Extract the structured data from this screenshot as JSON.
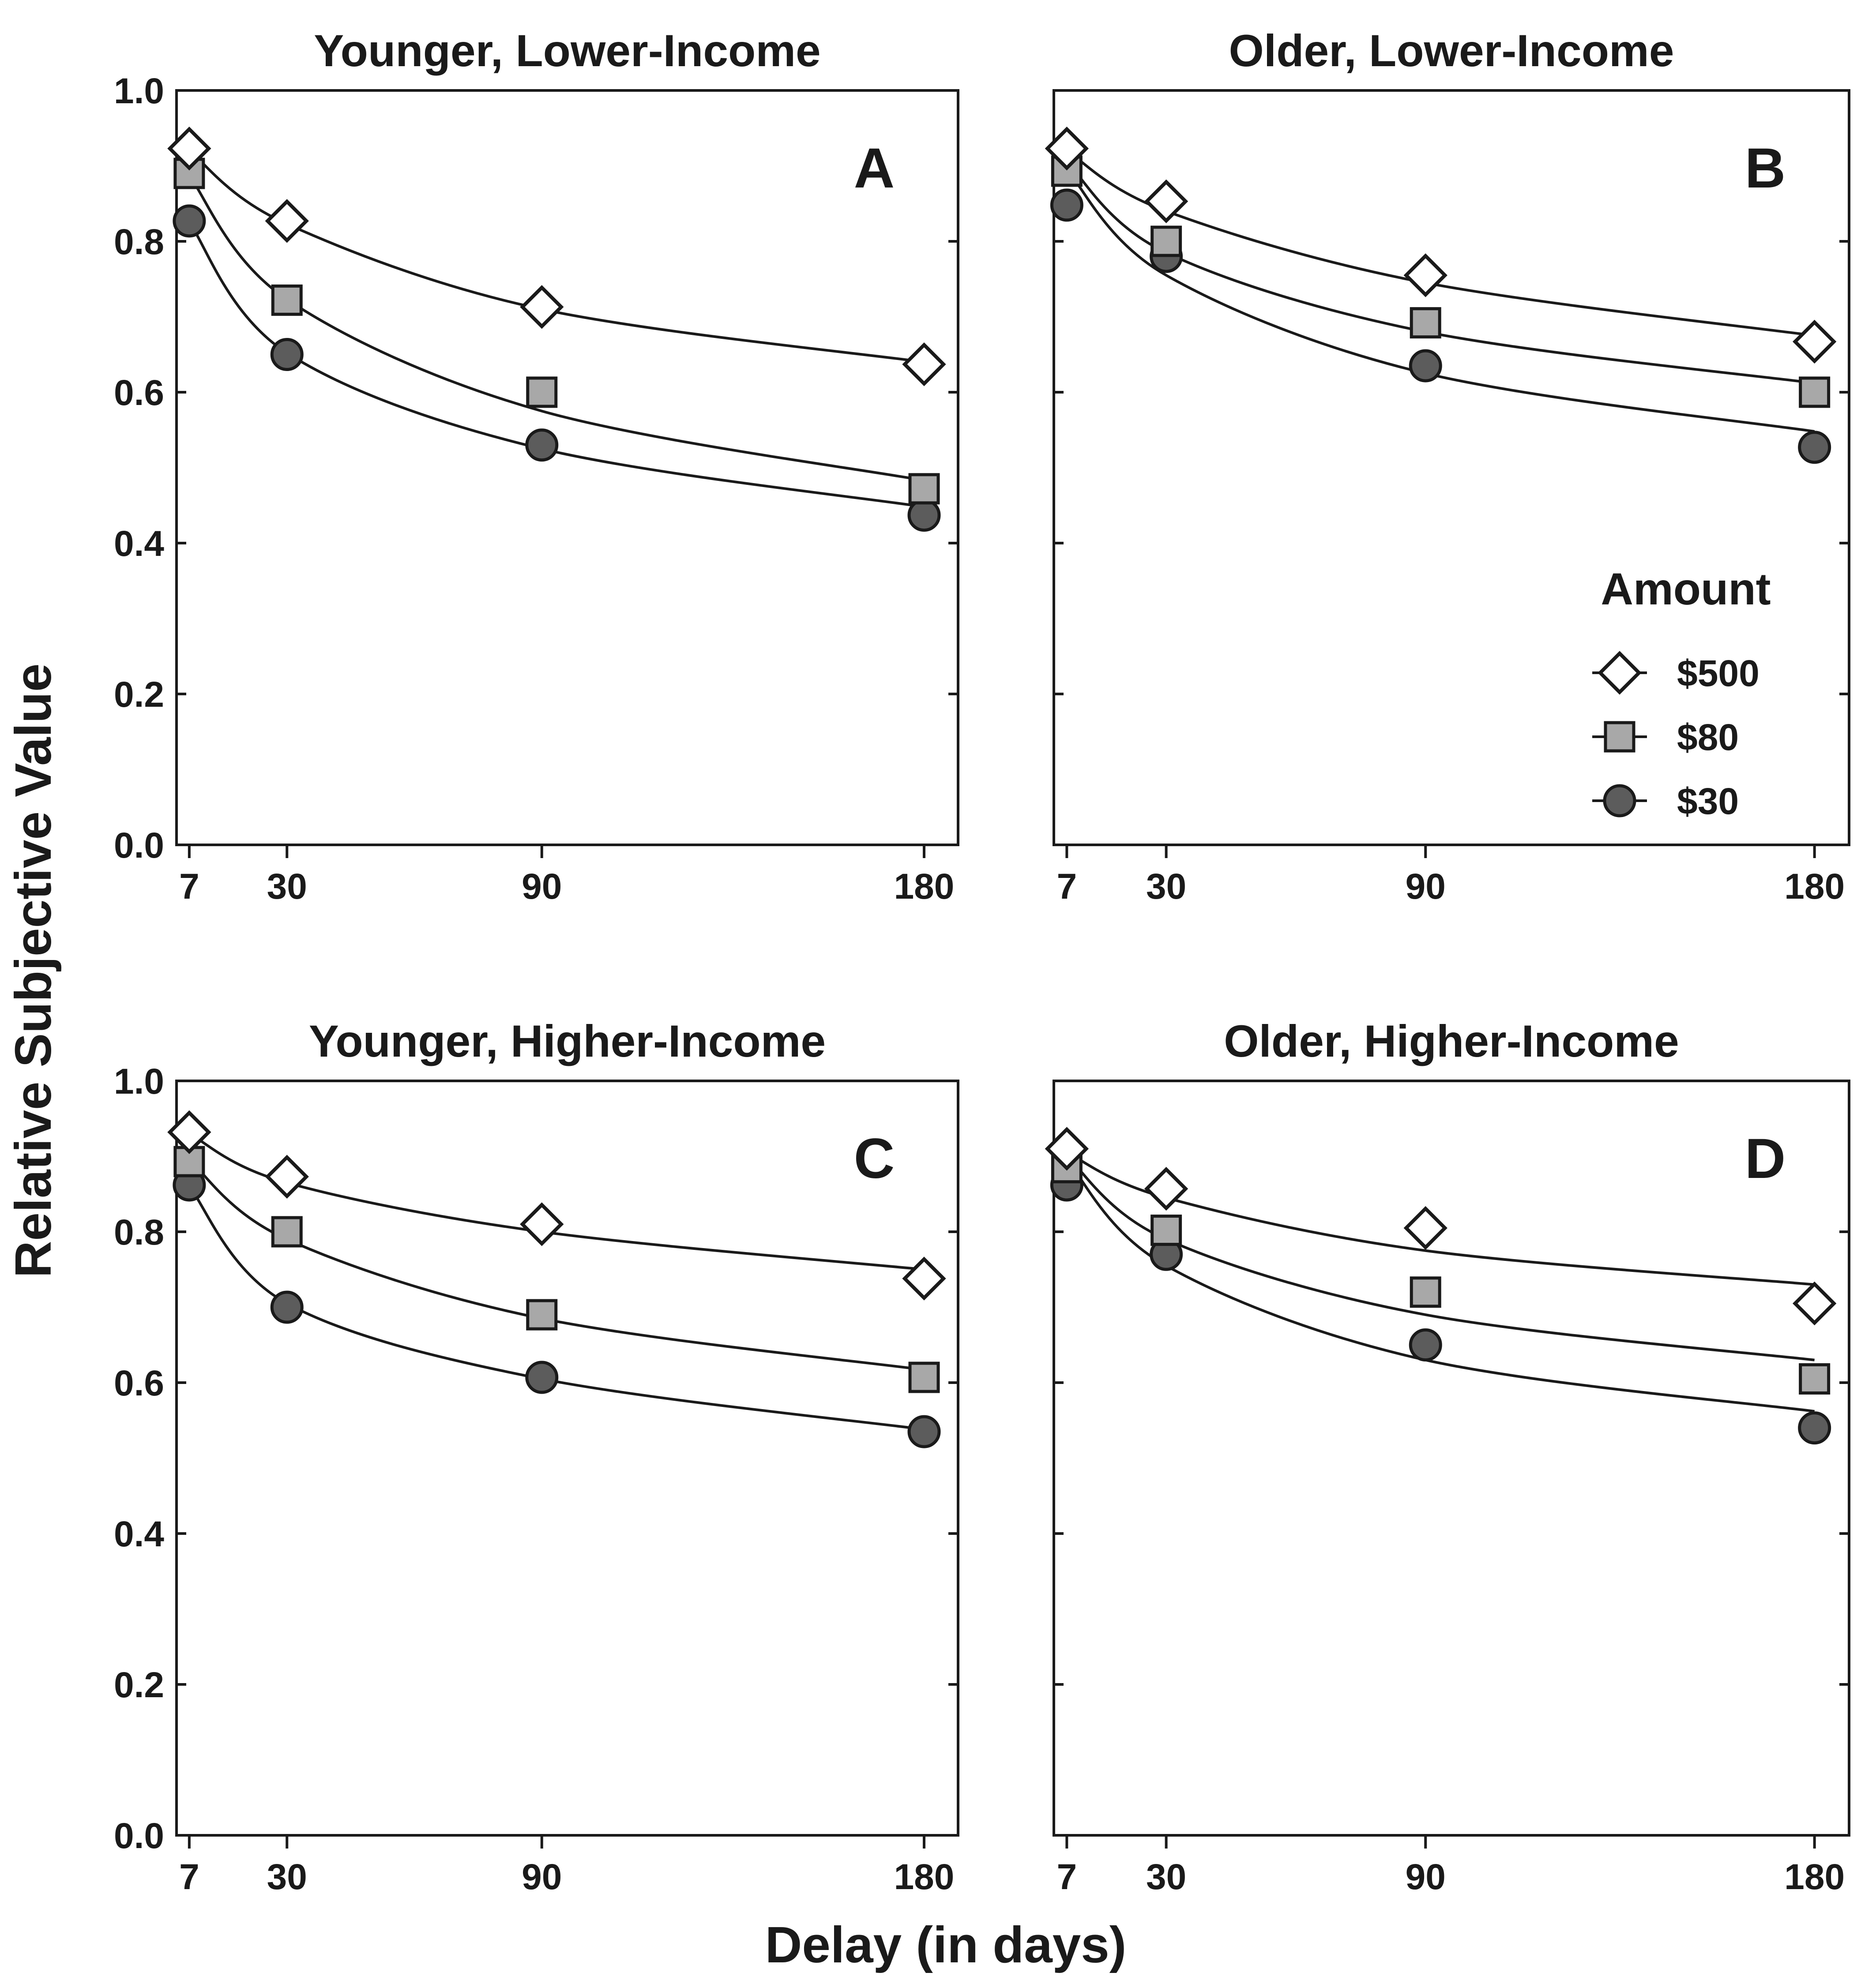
{
  "figure": {
    "xlabel": "Delay (in days)",
    "ylabel": "Relative Subjective Value",
    "legend": {
      "title": "Amount",
      "placement": "bottom-right of panel B",
      "entries": [
        {
          "label": "$500",
          "marker": "diamond",
          "fill": "#ffffff"
        },
        {
          "label": "$80",
          "marker": "square",
          "fill": "#a8a8a8"
        },
        {
          "label": "$30",
          "marker": "circle",
          "fill": "#5c5c5c"
        }
      ]
    },
    "colors": {
      "stroke": "#1a1a1a",
      "diamond": "#ffffff",
      "square": "#a8a8a8",
      "circle": "#5c5c5c"
    }
  },
  "chart_data": [
    {
      "type": "scatter",
      "title": "Younger, Lower-Income",
      "panel_label": "A",
      "x": [
        7,
        30,
        90,
        180
      ],
      "x_ticks": [
        7,
        30,
        90,
        180
      ],
      "y_ticks": [
        "0.0",
        "0.2",
        "0.4",
        "0.6",
        "0.8",
        "1.0"
      ],
      "ylim": [
        0,
        1
      ],
      "xlim": [
        4,
        188
      ],
      "series": [
        {
          "marker": "diamond",
          "values": [
            0.923,
            0.827,
            0.713,
            0.637
          ],
          "fit": [
            0.92,
            0.823,
            0.71,
            0.64
          ]
        },
        {
          "marker": "square",
          "values": [
            0.89,
            0.722,
            0.6,
            0.472
          ],
          "fit": [
            0.887,
            0.723,
            0.575,
            0.483
          ]
        },
        {
          "marker": "circle",
          "values": [
            0.827,
            0.65,
            0.53,
            0.437
          ],
          "fit": [
            0.825,
            0.652,
            0.525,
            0.448
          ]
        }
      ]
    },
    {
      "type": "scatter",
      "title": "Older, Lower-Income",
      "panel_label": "B",
      "x": [
        7,
        30,
        90,
        180
      ],
      "x_ticks": [
        7,
        30,
        90,
        180
      ],
      "y_ticks": [
        "0.0",
        "0.2",
        "0.4",
        "0.6",
        "0.8",
        "1.0"
      ],
      "ylim": [
        0,
        1
      ],
      "xlim": [
        4,
        188
      ],
      "series": [
        {
          "marker": "diamond",
          "values": [
            0.923,
            0.853,
            0.755,
            0.667
          ],
          "fit": [
            0.92,
            0.84,
            0.745,
            0.675
          ]
        },
        {
          "marker": "square",
          "values": [
            0.893,
            0.8,
            0.692,
            0.6
          ],
          "fit": [
            0.905,
            0.785,
            0.68,
            0.612
          ]
        },
        {
          "marker": "circle",
          "values": [
            0.848,
            0.78,
            0.635,
            0.527
          ],
          "fit": [
            0.895,
            0.755,
            0.625,
            0.548
          ]
        }
      ]
    },
    {
      "type": "scatter",
      "title": "Younger, Higher-Income",
      "panel_label": "C",
      "x": [
        7,
        30,
        90,
        180
      ],
      "x_ticks": [
        7,
        30,
        90,
        180
      ],
      "y_ticks": [
        "0.0",
        "0.2",
        "0.4",
        "0.6",
        "0.8",
        "1.0"
      ],
      "ylim": [
        0,
        1
      ],
      "xlim": [
        4,
        188
      ],
      "series": [
        {
          "marker": "diamond",
          "values": [
            0.932,
            0.873,
            0.81,
            0.738
          ],
          "fit": [
            0.93,
            0.865,
            0.8,
            0.75
          ]
        },
        {
          "marker": "square",
          "values": [
            0.893,
            0.8,
            0.69,
            0.607
          ],
          "fit": [
            0.895,
            0.79,
            0.685,
            0.617
          ]
        },
        {
          "marker": "circle",
          "values": [
            0.862,
            0.7,
            0.607,
            0.535
          ],
          "fit": [
            0.86,
            0.705,
            0.605,
            0.538
          ]
        }
      ]
    },
    {
      "type": "scatter",
      "title": "Older, Higher-Income",
      "panel_label": "D",
      "x": [
        7,
        30,
        90,
        180
      ],
      "x_ticks": [
        7,
        30,
        90,
        180
      ],
      "y_ticks": [
        "0.0",
        "0.2",
        "0.4",
        "0.6",
        "0.8",
        "1.0"
      ],
      "ylim": [
        0,
        1
      ],
      "xlim": [
        4,
        188
      ],
      "series": [
        {
          "marker": "diamond",
          "values": [
            0.91,
            0.857,
            0.805,
            0.705
          ],
          "fit": [
            0.905,
            0.845,
            0.775,
            0.73
          ]
        },
        {
          "marker": "square",
          "values": [
            0.885,
            0.802,
            0.72,
            0.605
          ],
          "fit": [
            0.9,
            0.79,
            0.69,
            0.63
          ]
        },
        {
          "marker": "circle",
          "values": [
            0.862,
            0.77,
            0.65,
            0.54
          ],
          "fit": [
            0.895,
            0.755,
            0.63,
            0.562
          ]
        }
      ]
    }
  ]
}
